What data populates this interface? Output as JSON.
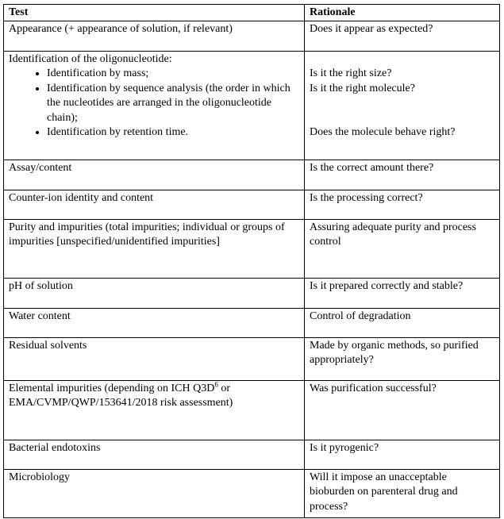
{
  "headers": {
    "test": "Test",
    "rationale": "Rationale"
  },
  "rows": [
    {
      "test": "Appearance (+ appearance of solution, if relevant)",
      "rationale": "Does it appear as expected?"
    },
    {
      "test": "Identification of the oligonucleotide:",
      "bullets": [
        "Identification by mass;",
        "Identification by sequence analysis (the order in which the nucleotides are arranged in the oligonucleotide chain);",
        "Identification by retention time."
      ],
      "rationale_lines": [
        "Is it the right size?",
        "Is it the right molecule?",
        "Does the molecule behave right?"
      ]
    },
    {
      "test": "Assay/content",
      "rationale": "Is the correct amount there?"
    },
    {
      "test": "Counter-ion identity and content",
      "rationale": "Is the processing correct?"
    },
    {
      "test": "Purity and impurities (total impurities; individual or groups of impurities [unspecified/unidentified impurities]",
      "rationale": "Assuring adequate purity and process control"
    },
    {
      "test": "pH of solution",
      "rationale": "Is it prepared correctly and stable?"
    },
    {
      "test": "Water content",
      "rationale": "Control of degradation"
    },
    {
      "test": "Residual solvents",
      "rationale": "Made by organic methods, so purified appropriately?"
    },
    {
      "test_pre": "Elemental impurities (depending on ICH Q3D",
      "test_sup": "6",
      "test_post": " or EMA/CVMP/QWP/153641/2018 risk assessment)",
      "rationale": "Was purification successful?"
    },
    {
      "test": "Bacterial endotoxins",
      "rationale": "Is it pyrogenic?"
    },
    {
      "test": "Microbiology",
      "rationale": "Will it impose an unacceptable bioburden on parenteral drug and process?"
    }
  ]
}
